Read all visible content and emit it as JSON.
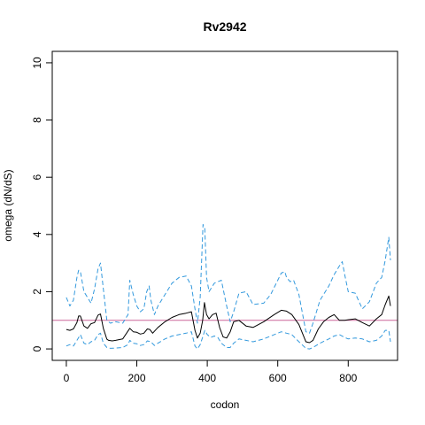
{
  "chart_data": {
    "type": "line",
    "title": "Rv2942",
    "xlabel": "codon",
    "ylabel": "omega (dN/dS)",
    "xlim": [
      -40,
      940
    ],
    "ylim": [
      -0.4,
      10.4
    ],
    "xticks": [
      0,
      200,
      400,
      600,
      800
    ],
    "yticks": [
      0,
      2,
      4,
      6,
      8,
      10
    ],
    "grid": false,
    "reference_line": {
      "y": 1,
      "color": "#cc6699"
    },
    "series": [
      {
        "role": "estimate",
        "color": "#000000",
        "dash": "solid",
        "x": [
          0,
          10,
          20,
          30,
          35,
          40,
          50,
          60,
          70,
          80,
          90,
          97,
          105,
          115,
          120,
          130,
          140,
          160,
          180,
          190,
          200,
          210,
          220,
          230,
          237,
          245,
          260,
          280,
          300,
          320,
          340,
          355,
          365,
          372,
          380,
          387,
          392,
          398,
          405,
          415,
          425,
          435,
          445,
          455,
          465,
          475,
          490,
          510,
          530,
          560,
          590,
          610,
          625,
          640,
          660,
          680,
          690,
          700,
          715,
          730,
          745,
          760,
          775,
          790,
          800,
          820,
          840,
          860,
          880,
          895,
          905,
          915,
          920
        ],
        "y": [
          0.68,
          0.65,
          0.7,
          0.92,
          1.15,
          1.15,
          0.8,
          0.72,
          0.88,
          0.92,
          1.18,
          1.22,
          0.72,
          0.34,
          0.3,
          0.28,
          0.3,
          0.35,
          0.72,
          0.6,
          0.58,
          0.52,
          0.55,
          0.7,
          0.68,
          0.55,
          0.75,
          0.95,
          1.1,
          1.2,
          1.25,
          1.3,
          0.65,
          0.38,
          0.55,
          1.0,
          1.62,
          1.2,
          1.05,
          1.2,
          1.25,
          0.75,
          0.42,
          0.38,
          0.6,
          0.95,
          1.0,
          0.8,
          0.75,
          0.95,
          1.2,
          1.35,
          1.32,
          1.2,
          0.85,
          0.25,
          0.22,
          0.3,
          0.7,
          0.95,
          1.1,
          1.2,
          1.0,
          1.0,
          1.02,
          1.05,
          0.92,
          0.8,
          1.05,
          1.2,
          1.55,
          1.85,
          1.5
        ]
      },
      {
        "role": "upper",
        "color": "#3399dd",
        "dash": "dashed",
        "x": [
          0,
          10,
          20,
          30,
          35,
          40,
          50,
          60,
          70,
          80,
          90,
          97,
          105,
          115,
          125,
          140,
          160,
          175,
          180,
          190,
          200,
          210,
          220,
          228,
          235,
          240,
          250,
          260,
          280,
          300,
          320,
          340,
          355,
          365,
          372,
          380,
          388,
          393,
          398,
          405,
          420,
          440,
          455,
          465,
          475,
          490,
          510,
          530,
          560,
          580,
          600,
          610,
          620,
          625,
          635,
          645,
          660,
          680,
          690,
          700,
          720,
          745,
          760,
          775,
          783,
          790,
          800,
          820,
          840,
          860,
          880,
          895,
          905,
          915,
          920
        ],
        "y": [
          1.8,
          1.5,
          1.7,
          2.5,
          2.75,
          2.7,
          2.0,
          1.8,
          1.6,
          2.1,
          2.8,
          3.0,
          2.1,
          1.0,
          0.9,
          0.95,
          0.9,
          1.2,
          2.4,
          1.9,
          1.5,
          1.3,
          1.4,
          2.0,
          2.2,
          1.7,
          1.2,
          1.5,
          1.9,
          2.3,
          2.5,
          2.55,
          2.2,
          1.4,
          0.9,
          1.8,
          4.35,
          4.2,
          2.5,
          2.0,
          2.3,
          2.4,
          1.5,
          0.95,
          1.3,
          1.95,
          2.0,
          1.55,
          1.6,
          1.9,
          2.4,
          2.65,
          2.7,
          2.5,
          2.35,
          2.4,
          1.9,
          0.6,
          0.55,
          0.9,
          1.7,
          2.2,
          2.6,
          2.9,
          3.05,
          2.6,
          2.0,
          1.95,
          1.4,
          1.65,
          2.3,
          2.5,
          3.1,
          3.9,
          3.1
        ]
      },
      {
        "role": "lower",
        "color": "#3399dd",
        "dash": "dashed",
        "x": [
          0,
          10,
          20,
          30,
          40,
          50,
          60,
          70,
          80,
          90,
          97,
          105,
          115,
          125,
          140,
          160,
          175,
          180,
          190,
          200,
          210,
          220,
          230,
          240,
          250,
          260,
          280,
          300,
          320,
          340,
          355,
          365,
          372,
          380,
          388,
          393,
          400,
          410,
          420,
          430,
          440,
          455,
          465,
          475,
          490,
          510,
          530,
          560,
          590,
          610,
          625,
          640,
          660,
          680,
          690,
          700,
          720,
          745,
          760,
          775,
          790,
          800,
          820,
          840,
          860,
          880,
          895,
          905,
          915,
          920
        ],
        "y": [
          0.1,
          0.15,
          0.1,
          0.3,
          0.5,
          0.2,
          0.15,
          0.25,
          0.3,
          0.5,
          0.55,
          0.2,
          0.05,
          0.02,
          0.03,
          0.05,
          0.15,
          0.3,
          0.2,
          0.18,
          0.12,
          0.15,
          0.28,
          0.25,
          0.12,
          0.2,
          0.35,
          0.45,
          0.5,
          0.55,
          0.6,
          0.1,
          0.0,
          0.15,
          0.45,
          0.65,
          0.5,
          0.4,
          0.45,
          0.4,
          0.2,
          0.05,
          0.05,
          0.2,
          0.35,
          0.3,
          0.25,
          0.35,
          0.5,
          0.6,
          0.55,
          0.5,
          0.25,
          0.02,
          0.0,
          0.05,
          0.2,
          0.35,
          0.45,
          0.5,
          0.4,
          0.35,
          0.38,
          0.35,
          0.25,
          0.3,
          0.45,
          0.65,
          0.65,
          0.25
        ]
      }
    ]
  }
}
